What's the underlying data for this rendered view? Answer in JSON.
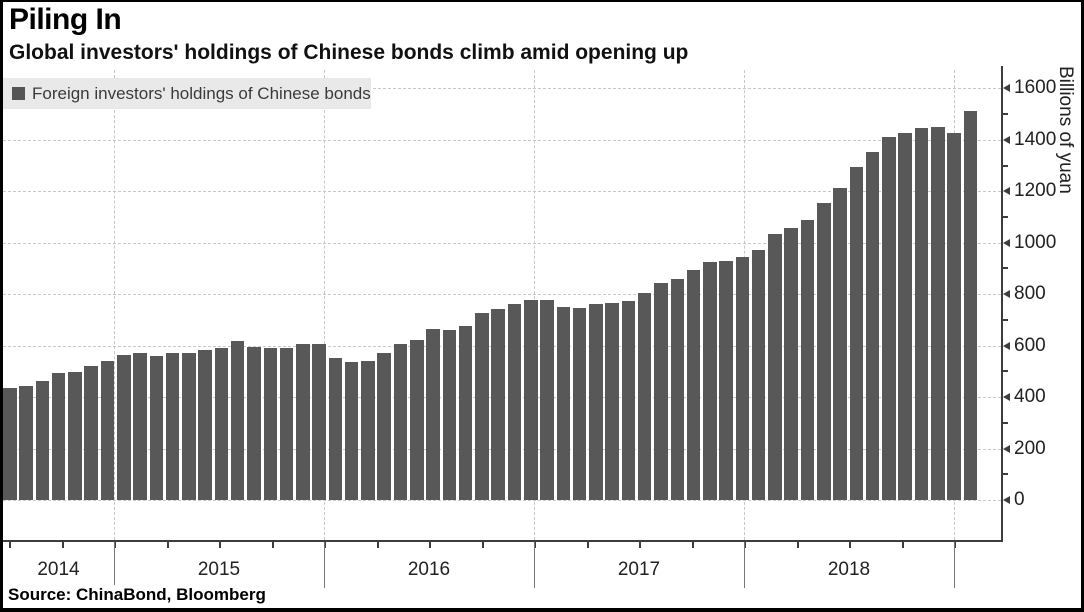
{
  "header": {
    "title": "Piling In",
    "subtitle": "Global investors' holdings of Chinese bonds climb amid opening up"
  },
  "legend": {
    "label": "Foreign investors' holdings of Chinese bonds",
    "swatch_color": "#555555"
  },
  "source": {
    "text": "Source: ChinaBond, Bloomberg"
  },
  "y_axis": {
    "title": "Billions of yuan",
    "tick_labels": [
      "0",
      "200",
      "400",
      "600",
      "800",
      "1000",
      "1200",
      "1400",
      "1600"
    ]
  },
  "x_axis": {
    "tick_labels": [
      "2014",
      "2015",
      "2016",
      "2017",
      "2018"
    ]
  },
  "colors": {
    "bar": "#585858",
    "gridline": "#c8c8c8",
    "axis": "#3d3d3d",
    "legend_background": "#e9e9e9"
  },
  "chart_data": {
    "type": "bar",
    "title": "Piling In",
    "subtitle": "Global investors' holdings of Chinese bonds climb amid opening up",
    "xlabel": "",
    "ylabel": "Billions of yuan",
    "ylim": [
      0,
      1600
    ],
    "ytick_step_major": 200,
    "ytick_step_minor": 100,
    "grid": "dashed",
    "legend_position": "top-left",
    "x_tick_labels": [
      "2014",
      "2015",
      "2016",
      "2017",
      "2018"
    ],
    "x": [
      "2014-01",
      "2014-02",
      "2014-03",
      "2014-04",
      "2014-05",
      "2014-06",
      "2014-07",
      "2014-08",
      "2014-09",
      "2014-10",
      "2014-11",
      "2014-12",
      "2015-01",
      "2015-02",
      "2015-03",
      "2015-04",
      "2015-05",
      "2015-06",
      "2015-07",
      "2015-08",
      "2015-09",
      "2015-10",
      "2015-11",
      "2015-12",
      "2016-01",
      "2016-02",
      "2016-03",
      "2016-04",
      "2016-05",
      "2016-06",
      "2016-07",
      "2016-08",
      "2016-09",
      "2016-10",
      "2016-11",
      "2016-12",
      "2017-01",
      "2017-02",
      "2017-03",
      "2017-04",
      "2017-05",
      "2017-06",
      "2017-07",
      "2017-08",
      "2017-09",
      "2017-10",
      "2017-11",
      "2017-12",
      "2018-01",
      "2018-02",
      "2018-03",
      "2018-04",
      "2018-05",
      "2018-06",
      "2018-07",
      "2018-08",
      "2018-09",
      "2018-10",
      "2018-11",
      "2018-12"
    ],
    "series": [
      {
        "name": "Foreign investors' holdings of Chinese bonds",
        "values": [
          437,
          443,
          462,
          495,
          499,
          521,
          541,
          564,
          570,
          560,
          572,
          570,
          583,
          590,
          618,
          596,
          590,
          590,
          605,
          605,
          553,
          535,
          540,
          572,
          606,
          622,
          663,
          661,
          676,
          726,
          742,
          760,
          777,
          777,
          749,
          745,
          762,
          767,
          774,
          806,
          844,
          858,
          894,
          924,
          930,
          945,
          972,
          1032,
          1056,
          1088,
          1153,
          1211,
          1293,
          1354,
          1409,
          1425,
          1444,
          1448,
          1425,
          1512
        ]
      }
    ]
  }
}
